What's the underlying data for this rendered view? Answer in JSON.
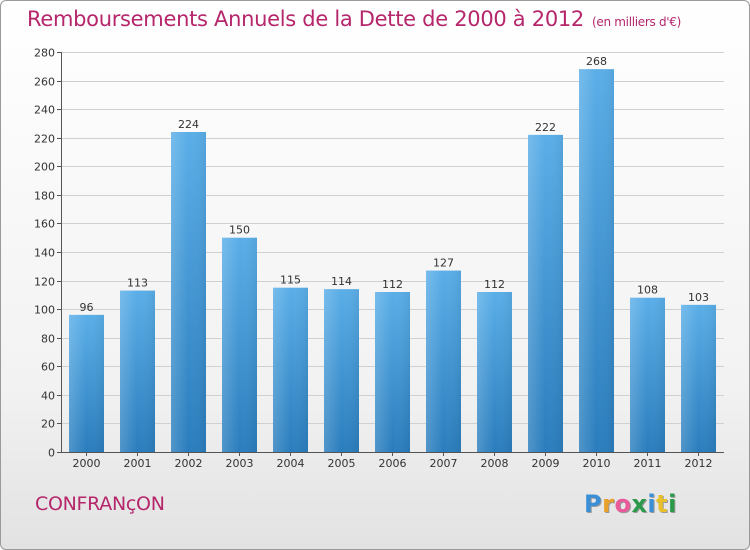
{
  "header": {
    "title": "Remboursements Annuels de la Dette de 2000 à 2012",
    "subtitle": "(en milliers d'€)"
  },
  "footer": {
    "town": "CONFRANçON",
    "logo_letters": [
      "P",
      "r",
      "o",
      "x",
      "i",
      "t",
      "i"
    ]
  },
  "colors": {
    "title": "#b5266b",
    "bar_top": "#5aaee8",
    "bar_bottom": "#2a7dbd",
    "logo_letters": [
      "#3a8fd6",
      "#e8a02a",
      "#e85a9a",
      "#2a9a4a",
      "#3a8fd6",
      "#e8c02a",
      "#2a9a4a"
    ]
  },
  "chart_data": {
    "type": "bar",
    "title": "Remboursements Annuels de la Dette de 2000 à 2012",
    "subtitle": "(en milliers d'€)",
    "xlabel": "",
    "ylabel": "",
    "categories": [
      "2000",
      "2001",
      "2002",
      "2003",
      "2004",
      "2005",
      "2006",
      "2007",
      "2008",
      "2009",
      "2010",
      "2011",
      "2012"
    ],
    "values": [
      96,
      113,
      224,
      150,
      115,
      114,
      112,
      127,
      112,
      222,
      268,
      108,
      103
    ],
    "ylim": [
      0,
      280
    ],
    "yticks": [
      0,
      20,
      40,
      60,
      80,
      100,
      120,
      140,
      160,
      180,
      200,
      220,
      240,
      260,
      280
    ],
    "grid": true,
    "legend": "none"
  }
}
